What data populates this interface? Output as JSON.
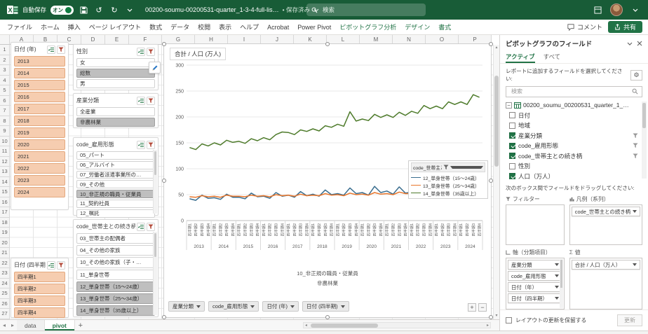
{
  "titlebar": {
    "autosave_label": "自動保存",
    "autosave_state": "オン",
    "filename": "00200-soumu-00200531-quarter_1-3-4-full-lis…",
    "saved_status": "保存済み",
    "search_placeholder": "検索"
  },
  "ribbon": {
    "tabs": [
      "ファイル",
      "ホーム",
      "挿入",
      "ページ レイアウト",
      "数式",
      "データ",
      "校閲",
      "表示",
      "ヘルプ",
      "Acrobat",
      "Power Pivot"
    ],
    "contextual_tabs": [
      "ピボットグラフ分析",
      "デザイン",
      "書式"
    ],
    "comments_label": "コメント",
    "share_label": "共有"
  },
  "sheet": {
    "column_headers": [
      "A",
      "B",
      "C",
      "D",
      "E",
      "F",
      "G",
      "H",
      "I",
      "J",
      "K",
      "L",
      "M",
      "N",
      "O",
      "P"
    ],
    "row_count": 27
  },
  "slicers": [
    {
      "id": "date-year",
      "title": "日付 (年)",
      "style": "peach",
      "items": [
        {
          "label": "2013",
          "selected": true
        },
        {
          "label": "2014",
          "selected": true
        },
        {
          "label": "2015",
          "selected": true
        },
        {
          "label": "2016",
          "selected": true
        },
        {
          "label": "2017",
          "selected": true
        },
        {
          "label": "2018",
          "selected": true
        },
        {
          "label": "2019",
          "selected": true
        },
        {
          "label": "2020",
          "selected": true
        },
        {
          "label": "2021",
          "selected": true
        },
        {
          "label": "2022",
          "selected": true
        },
        {
          "label": "2023",
          "selected": true
        },
        {
          "label": "2024",
          "selected": true
        }
      ]
    },
    {
      "id": "gender",
      "title": "性別",
      "style": "gray",
      "items": [
        {
          "label": "女",
          "selected": false
        },
        {
          "label": "総数",
          "selected": true
        },
        {
          "label": "男",
          "selected": false
        }
      ]
    },
    {
      "id": "industry",
      "title": "産業分類",
      "style": "gray",
      "items": [
        {
          "label": "全産業",
          "selected": false
        },
        {
          "label": "非農林業",
          "selected": true
        }
      ]
    },
    {
      "id": "employment",
      "title": "code_雇用形態",
      "style": "gray",
      "items": [
        {
          "label": "05_パート",
          "selected": false
        },
        {
          "label": "06_アルバイト",
          "selected": false
        },
        {
          "label": "07_労働者派遣事業所の…",
          "selected": false
        },
        {
          "label": "09_その他",
          "selected": false
        },
        {
          "label": "10_非正規の職員・従業員",
          "selected": true
        },
        {
          "label": "11_契約社員",
          "selected": false
        },
        {
          "label": "12_嘱託",
          "selected": false
        }
      ]
    },
    {
      "id": "relationship",
      "title": "code_世帯主との続き柄",
      "style": "gray",
      "items": [
        {
          "label": "03_世帯主の配偶者",
          "selected": false
        },
        {
          "label": "04_その他の家族",
          "selected": false
        },
        {
          "label": "10_その他の家族（子・…",
          "selected": false
        },
        {
          "label": "11_単身世帯",
          "selected": false
        },
        {
          "label": "12_単身世帯（15～24歳）",
          "selected": true
        },
        {
          "label": "13_単身世帯（25～34歳）",
          "selected": true
        },
        {
          "label": "14_単身世帯（35歳以上）",
          "selected": true
        }
      ]
    },
    {
      "id": "date-quarter",
      "title": "日付 (四半期)",
      "style": "peach",
      "items": [
        {
          "label": "四半期1",
          "selected": true
        },
        {
          "label": "四半期2",
          "selected": true
        },
        {
          "label": "四半期3",
          "selected": true
        },
        {
          "label": "四半期4",
          "selected": true
        }
      ]
    }
  ],
  "chart": {
    "title": "合計 / 人口 (万人)",
    "legend_title": "code_世帯主との続き柄",
    "footer_labels": [
      "10_非正規の職員・従業員",
      "非農林業"
    ],
    "field_buttons": [
      "産業分類",
      "code_雇用形態",
      "日付 (年)",
      "日付 (四半期)"
    ],
    "expand_buttons": [
      "+",
      "−"
    ]
  },
  "chart_data": {
    "type": "line",
    "title": "合計 / 人口 (万人)",
    "ylim": [
      0,
      300
    ],
    "ytick_step": 50,
    "grid": true,
    "legend_position": "right-inside",
    "years": [
      "2013",
      "2014",
      "2015",
      "2016",
      "2017",
      "2018",
      "2019",
      "2020",
      "2021",
      "2022",
      "2023",
      "2024"
    ],
    "quarter_labels": [
      "四半期1",
      "四半期2",
      "四半期3",
      "四半期4"
    ],
    "series": [
      {
        "name": "12_単身世帯（15～24歳）",
        "color": "#3A6E8F",
        "values": [
          42,
          39,
          49,
          43,
          44,
          41,
          51,
          45,
          45,
          42,
          53,
          46,
          47,
          43,
          54,
          47,
          49,
          45,
          56,
          48,
          51,
          47,
          59,
          50,
          52,
          49,
          63,
          52,
          54,
          49,
          66,
          54,
          57,
          51,
          65,
          53,
          55,
          50,
          62,
          52,
          56,
          51,
          64,
          55,
          58,
          53,
          68,
          61
        ]
      },
      {
        "name": "13_単身世帯（25～34歳）",
        "color": "#E8762C",
        "values": [
          46,
          45,
          48,
          46,
          47,
          45,
          49,
          47,
          47,
          46,
          49,
          47,
          48,
          46,
          50,
          48,
          49,
          47,
          51,
          48,
          49,
          48,
          52,
          49,
          50,
          48,
          53,
          50,
          51,
          49,
          54,
          51,
          52,
          50,
          55,
          52,
          52,
          50,
          56,
          53,
          53,
          51,
          57,
          54,
          54,
          52,
          59,
          56
        ]
      },
      {
        "name": "14_単身世帯（35歳以上）",
        "color": "#4E7B2B",
        "values": [
          141,
          137,
          148,
          144,
          150,
          146,
          155,
          151,
          153,
          149,
          158,
          154,
          160,
          156,
          166,
          171,
          170,
          166,
          175,
          172,
          177,
          173,
          183,
          180,
          186,
          182,
          210,
          192,
          196,
          193,
          205,
          199,
          204,
          199,
          209,
          203,
          211,
          207,
          222,
          216,
          221,
          216,
          229,
          224,
          229,
          224,
          243,
          238
        ]
      }
    ]
  },
  "fields_panel": {
    "title": "ピボットグラフのフィールド",
    "tabs": [
      "アクティブ",
      "すべて"
    ],
    "active_tab": "アクティブ",
    "choose_hint": "レポートに追加するフィールドを選択してください:",
    "search_placeholder": "検索",
    "table_name": "00200_soumu_00200531_quarter_1_…",
    "fields": [
      {
        "label": "日付",
        "checked": false,
        "filter": false
      },
      {
        "label": "地域",
        "checked": false,
        "filter": false
      },
      {
        "label": "産業分類",
        "checked": true,
        "filter": true
      },
      {
        "label": "code_雇用形態",
        "checked": true,
        "filter": true
      },
      {
        "label": "code_世帯主との続き柄",
        "checked": true,
        "filter": true
      },
      {
        "label": "性別",
        "checked": false,
        "filter": false
      },
      {
        "label": "人口（万人）",
        "checked": true,
        "filter": false
      }
    ],
    "drag_hint": "次のボックス間でフィールドをドラッグしてください:",
    "areas": {
      "filters": {
        "label": "フィルター",
        "items": []
      },
      "legend": {
        "label": "凡例（系列）",
        "items": [
          "code_世帯主との続き柄"
        ]
      },
      "axis": {
        "label": "軸（分類項目）",
        "items": [
          "産業分類",
          "code_雇用形態",
          "日付（年）",
          "日付（四半期）"
        ]
      },
      "values": {
        "label": "値",
        "items": [
          "合計 / 人口（万人）"
        ]
      }
    },
    "defer_label": "レイアウトの更新を保留する",
    "update_label": "更新"
  },
  "sheet_tabs": {
    "tabs": [
      "data",
      "pivot"
    ],
    "active": "pivot"
  }
}
